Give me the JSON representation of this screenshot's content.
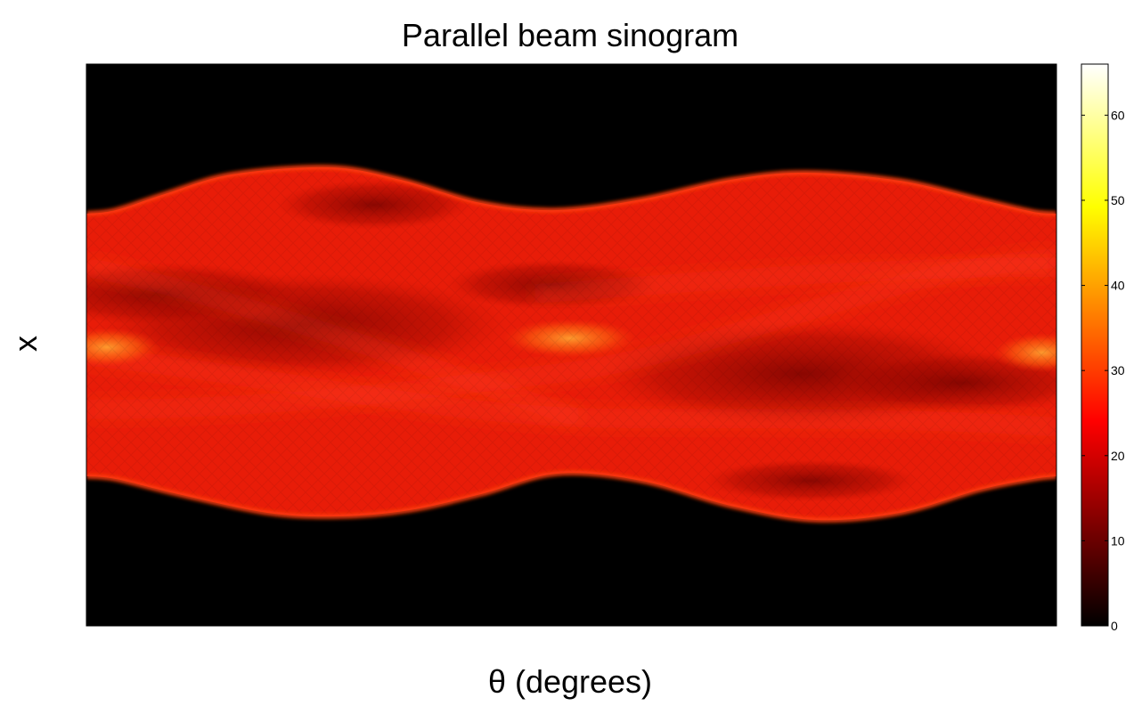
{
  "chart_data": {
    "type": "heatmap",
    "title": "Parallel beam sinogram",
    "xlabel": "θ (degrees)",
    "ylabel": "x",
    "x_tick_labels": [],
    "y_tick_labels": [],
    "grid": false,
    "colormap": "hot",
    "colorbar": {
      "range": [
        0,
        66
      ],
      "ticks": [
        0,
        10,
        20,
        30,
        40,
        50,
        60
      ],
      "tick_labels": [
        "0",
        "10",
        "20",
        "30",
        "40",
        "50",
        "60"
      ]
    },
    "colors": {
      "background": "#000000",
      "band_base": "#e81c08",
      "band_edge": "#ff3c10",
      "dark_interior": "#8a0500",
      "hot_spot": "#ff8a1a"
    }
  }
}
